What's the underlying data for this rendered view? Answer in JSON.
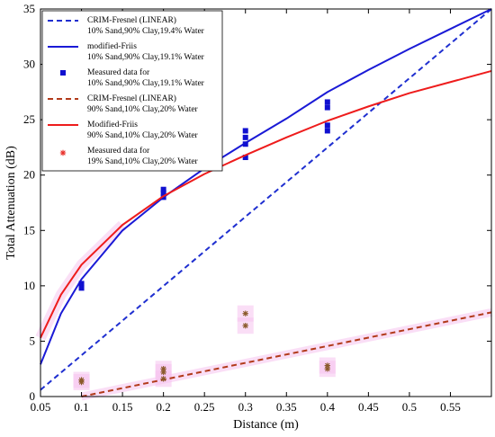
{
  "chart_data": {
    "type": "line",
    "xlabel": "Distance (m)",
    "ylabel": "Total Attenuation (dB)",
    "xlim": [
      0.05,
      0.6
    ],
    "ylim": [
      0,
      35
    ],
    "grid": false,
    "legend_position": "top-left",
    "x_ticks": [
      "0.05",
      "0.1",
      "0.15",
      "0.2",
      "0.25",
      "0.3",
      "0.35",
      "0.4",
      "0.45",
      "0.5",
      "0.55"
    ],
    "y_ticks": [
      "0",
      "5",
      "10",
      "15",
      "20",
      "25",
      "30",
      "35"
    ],
    "colors": {
      "blue_dashed": "#1f2fd0",
      "blue_solid": "#1a1ad6",
      "blue_marker": "#1010d0",
      "red_dashed": "#b23a1a",
      "red_solid": "#ee1c1c",
      "star_marker": "#8b5a2b",
      "star_glow": "#f6c2ee"
    },
    "series": [
      {
        "name": "CRIM-Fresnel (LINEAR)",
        "name2": "10% Sand,90% Clay,19.4% Water",
        "style": "dashed",
        "color": "#1f2fd0",
        "x": [
          0.05,
          0.6
        ],
        "y": [
          0.6,
          35.0
        ]
      },
      {
        "name": "modified-Friis",
        "name2": "10% Sand,90% Clay,19.1% Water",
        "style": "solid",
        "color": "#1a1ad6",
        "x": [
          0.05,
          0.075,
          0.1,
          0.15,
          0.2,
          0.25,
          0.3,
          0.35,
          0.4,
          0.45,
          0.5,
          0.55,
          0.6
        ],
        "y": [
          2.9,
          7.5,
          10.6,
          15.0,
          18.0,
          20.6,
          22.9,
          25.1,
          27.5,
          29.5,
          31.4,
          33.2,
          35.0
        ]
      },
      {
        "name": "Measured data  for",
        "name2": "10% Sand,90% Clay,19.1% Water",
        "style": "marker-square",
        "color": "#1010d0",
        "x": [
          0.1,
          0.1,
          0.2,
          0.2,
          0.2,
          0.3,
          0.3,
          0.3,
          0.3,
          0.4,
          0.4,
          0.4,
          0.4
        ],
        "y": [
          9.8,
          10.2,
          18.0,
          18.4,
          18.7,
          21.6,
          22.8,
          23.4,
          24.0,
          24.0,
          24.5,
          26.1,
          26.6
        ]
      },
      {
        "name": "CRIM-Fresnel (LINEAR)",
        "name2": "90% Sand,10% Clay,20% Water",
        "style": "dashed",
        "color": "#b23a1a",
        "x": [
          0.1,
          0.6
        ],
        "y": [
          0.0,
          7.6
        ]
      },
      {
        "name": "Modified-Friis",
        "name2": "90% Sand,10% Clay,20% Water",
        "style": "solid",
        "color": "#ee1c1c",
        "x": [
          0.05,
          0.075,
          0.1,
          0.15,
          0.2,
          0.25,
          0.3,
          0.35,
          0.4,
          0.45,
          0.5,
          0.55,
          0.6
        ],
        "y": [
          5.3,
          9.2,
          11.9,
          15.5,
          18.1,
          20.1,
          21.8,
          23.4,
          24.9,
          26.2,
          27.4,
          28.4,
          29.4
        ]
      },
      {
        "name": "Measured data  for",
        "name2": "19% Sand,10% Clay,20% Water",
        "style": "marker-star",
        "color": "#8b5a2b",
        "x": [
          0.1,
          0.1,
          0.2,
          0.2,
          0.2,
          0.3,
          0.3,
          0.4,
          0.4
        ],
        "y": [
          1.3,
          1.5,
          1.6,
          2.2,
          2.5,
          6.4,
          7.5,
          2.5,
          2.8
        ]
      }
    ]
  }
}
